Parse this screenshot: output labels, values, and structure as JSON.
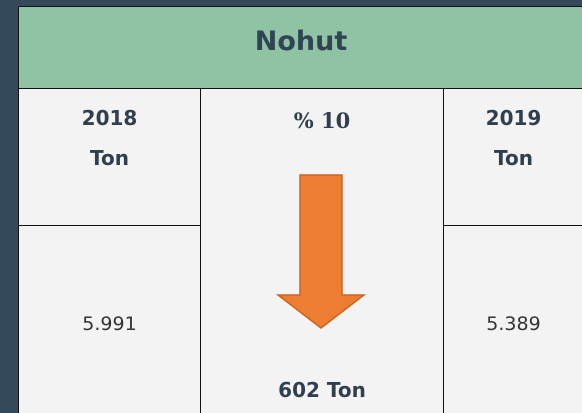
{
  "header": {
    "title": "Nohut"
  },
  "columns": [
    {
      "year": "2018",
      "unit": "Ton",
      "value": "5.991"
    },
    {
      "year": "2019",
      "unit": "Ton",
      "value": "5.389"
    }
  ],
  "change": {
    "percent": "% 10",
    "difference": "602 Ton"
  }
}
